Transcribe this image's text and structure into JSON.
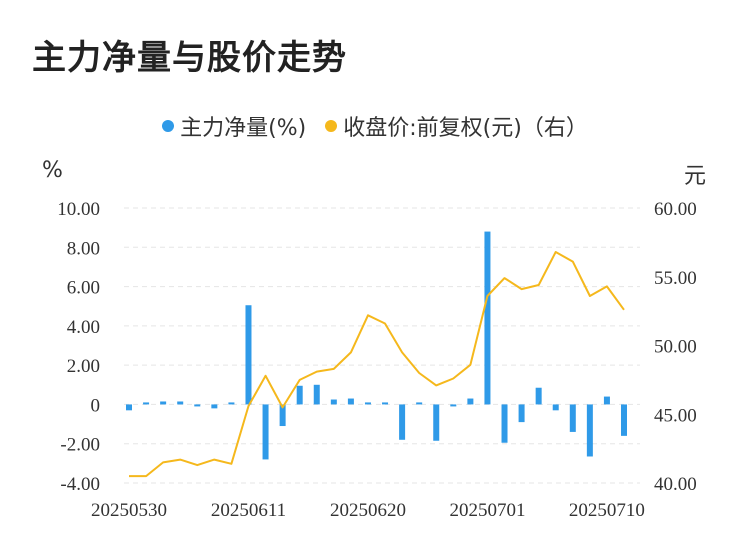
{
  "title": "主力净量与股价走势",
  "legend": {
    "bar_label": "主力净量(%)",
    "line_label": "收盘价:前复权(元)（右）"
  },
  "left_unit": "%",
  "right_unit": "元",
  "colors": {
    "bar": "#2f9ae8",
    "line": "#f5b81c",
    "grid": "#e5e5e5"
  },
  "chart_data": {
    "type": "bar+line",
    "x_tick_labels": [
      "20250530",
      "20250611",
      "20250620",
      "20250701",
      "20250710"
    ],
    "x_tick_index": [
      0,
      7,
      14,
      21,
      28
    ],
    "y_left": {
      "ticks": [
        "10.00",
        "8.00",
        "6.00",
        "4.00",
        "2.00",
        "0",
        "-2.00",
        "-4.00"
      ],
      "range": [
        -4,
        10
      ]
    },
    "y_right": {
      "ticks": [
        "60.00",
        "55.00",
        "50.00",
        "45.00",
        "40.00"
      ],
      "range": [
        40,
        60
      ]
    },
    "series": [
      {
        "name": "主力净量(%)",
        "kind": "bar",
        "values": [
          -0.3,
          0.0,
          0.15,
          0.15,
          -0.05,
          -0.2,
          0.05,
          5.05,
          -2.8,
          -1.1,
          0.95,
          1.0,
          0.25,
          0.3,
          0.05,
          0.0,
          -1.8,
          0.05,
          -1.85,
          -0.05,
          0.3,
          8.8,
          -1.95,
          -0.9,
          0.85,
          -0.3,
          -1.4,
          -2.65,
          0.4,
          -1.6
        ]
      },
      {
        "name": "收盘价:前复权(元)（右）",
        "kind": "line",
        "values": [
          40.5,
          40.5,
          41.5,
          41.7,
          41.3,
          41.7,
          41.4,
          45.6,
          47.8,
          45.5,
          47.5,
          48.1,
          48.3,
          49.5,
          52.2,
          51.6,
          49.5,
          48.0,
          47.1,
          47.6,
          48.6,
          53.6,
          54.9,
          54.1,
          54.4,
          56.8,
          56.1,
          53.6,
          54.3,
          52.6
        ]
      }
    ]
  }
}
